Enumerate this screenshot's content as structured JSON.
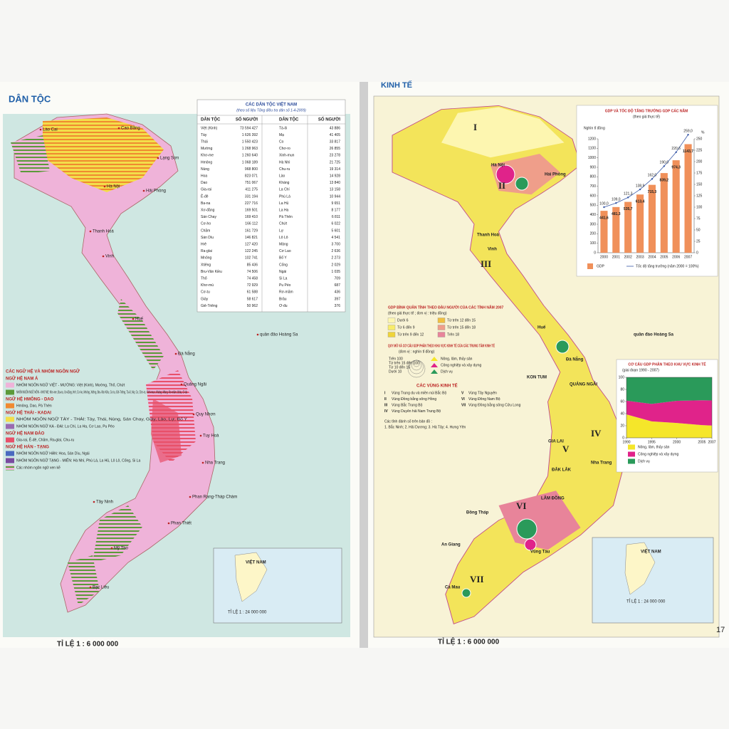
{
  "left_page": {
    "header": "DÂN TỘC",
    "table": {
      "title": "CÁC DÂN TỘC VIỆT NAM",
      "subtitle": "(theo số liệu Tổng điều tra dân số 1-4-2009)",
      "columns": [
        "DÂN TỘC",
        "SỐ NGƯỜI",
        "DÂN TỘC",
        "SỐ NGƯỜI"
      ],
      "rows": [
        [
          "Việt (Kinh)",
          "73 594 427",
          "Tà-ôi",
          "43 886"
        ],
        [
          "Tày",
          "1 626 392",
          "Mạ",
          "41 405"
        ],
        [
          "Thái",
          "1 550 423",
          "Co",
          "33 817"
        ],
        [
          "Mường",
          "1 268 963",
          "Chơ-ro",
          "26 855"
        ],
        [
          "Khơ-me",
          "1 260 640",
          "Xinh-mun",
          "23 278"
        ],
        [
          "Hmông",
          "1 068 189",
          "Hà Nhì",
          "21 725"
        ],
        [
          "Nùng",
          "968 800",
          "Chu-ru",
          "19 314"
        ],
        [
          "Hoa",
          "823 071",
          "Lào",
          "14 928"
        ],
        [
          "Dao",
          "751 067",
          "Kháng",
          "13 840"
        ],
        [
          "Gia-rai",
          "411 275",
          "La Chí",
          "13 158"
        ],
        [
          "Ê-đê",
          "331 194",
          "Phù Lá",
          "10 944"
        ],
        [
          "Ba-na",
          "227 716",
          "La Hủ",
          "9 651"
        ],
        [
          "Xơ-đăng",
          "169 501",
          "La Ha",
          "8 177"
        ],
        [
          "Sán Chay",
          "169 410",
          "Pà Thẻn",
          "6 811"
        ],
        [
          "Cơ-ho",
          "166 112",
          "Chứt",
          "6 022"
        ],
        [
          "Chăm",
          "161 729",
          "Lự",
          "5 601"
        ],
        [
          "Sán Dìu",
          "146 821",
          "Lô Lô",
          "4 541"
        ],
        [
          "Hrê",
          "127 420",
          "Mảng",
          "3 700"
        ],
        [
          "Ra-glai",
          "122 245",
          "Cơ Lao",
          "2 636"
        ],
        [
          "Mnông",
          "102 741",
          "Bố Y",
          "2 273"
        ],
        [
          "Xtiêng",
          "85 436",
          "Cống",
          "2 029"
        ],
        [
          "Bru-Vân Kiều",
          "74 506",
          "Ngái",
          "1 035"
        ],
        [
          "Thổ",
          "74 458",
          "Si La",
          "709"
        ],
        [
          "Khơ-mú",
          "72 929",
          "Pu Péo",
          "687"
        ],
        [
          "Cơ-tu",
          "61 588",
          "Rơ-măm",
          "436"
        ],
        [
          "Giáy",
          "58 617",
          "Brâu",
          "397"
        ],
        [
          "Giẻ-Triêng",
          "50 962",
          "Ơ-đu",
          "376"
        ]
      ]
    },
    "legend": {
      "title": "CÁC NGỮ HỆ VÀ NHÓM NGÔN NGỮ",
      "groups": [
        {
          "title": "NGỮ HỆ NAM Á",
          "items": [
            {
              "label": "NHÓM NGÔN NGỮ VIỆT - MƯỜNG: Việt (Kinh), Mường, Thổ, Chứt",
              "color": "#efb3d9"
            },
            {
              "label": "NHÓM NGÔN NGỮ MÔN - KHƠ ME: Khơ-me, Ba-na, Xơ-đăng, Hrê, Cơ-ho, Mnông, Xtiêng, Bru-Vân Kiều, Cơ-tu, Giẻ-Triêng, Tà-ôi, Mạ, Co, Chơ-ro, Xinh-mun, Kháng, Mảng, Rơ-măm, Brâu, Ơ-đu",
              "color": "#5c9a3a"
            }
          ]
        },
        {
          "title": "NGỮ HỆ HMÔNG - DAO",
          "items": [
            {
              "label": "Hmông, Dao, Pà Thẻn",
              "color": "#f08a30"
            }
          ]
        },
        {
          "title": "NGỮ HỆ THÁI - KADAI",
          "items": [
            {
              "label": "NHÓM NGÔN NGỮ TÀY - THÁI: Tày, Thái, Nùng, Sán Chay, Giáy, Lào, Lự, Bố Y",
              "color": "#f3de4a"
            },
            {
              "label": "NHÓM NGÔN NGỮ KA - ĐAI: La Chí, La Ha, Cơ Lao, Pu Péo",
              "color": "#9a6ab0"
            }
          ]
        },
        {
          "title": "NGỮ HỆ NAM ĐẢO",
          "items": [
            {
              "label": "Gia-rai, Ê-đê, Chăm, Ra-glai, Chu-ru",
              "color": "#e8506a"
            }
          ]
        },
        {
          "title": "NGỮ HỆ HÁN - TẠNG",
          "items": [
            {
              "label": "NHÓM NGÔN NGỮ HÁN: Hoa, Sán Dìu, Ngái",
              "color": "#4a6ac0"
            },
            {
              "label": "NHÓM NGÔN NGỮ TẠNG - MIẾN: Hà Nhì, Phù Lá, La Hủ, Lô Lô, Cống, Si La",
              "color": "#7a4aa0"
            }
          ]
        }
      ],
      "mixed": "Các nhóm ngôn ngữ xen kẽ"
    },
    "places": [
      "Lào Cai",
      "Cao Bằng",
      "Lạng Sơn",
      "Hà Nội",
      "Hải Phòng",
      "Thanh Hoá",
      "Vinh",
      "Huế",
      "Đà Nẵng",
      "Quảng Ngãi",
      "Quy Nhơn",
      "Tuy Hoà",
      "Nha Trang",
      "Phan Rang-Tháp Chàm",
      "Phan Thiết",
      "Tây Ninh",
      "Mỹ Tho",
      "Bạc Liêu",
      "quần đảo Hoàng Sa"
    ],
    "inset_label": "VIỆT NAM",
    "inset_scale": "TỈ LỆ 1 : 24 000 000",
    "scale": "TỈ LỆ 1 : 6 000 000"
  },
  "right_page": {
    "header": "KINH TẾ",
    "gdp_legend": {
      "title": "GDP BÌNH QUÂN TÍNH THEO ĐẦU NGƯỜI CỦA CÁC TỈNH NĂM 2007",
      "subtitle": "(theo giá thực tế ; đơn vị : triệu đồng)",
      "items": [
        {
          "label": "Dưới 6",
          "color": "#fdf6b0"
        },
        {
          "label": "Từ 6 đến 9",
          "color": "#f8ec6a"
        },
        {
          "label": "Từ trên 9 đến 12",
          "color": "#efd43a"
        },
        {
          "label": "Từ trên 12 đến 15",
          "color": "#f0c040"
        },
        {
          "label": "Từ trên 15 đến 18",
          "color": "#ef9e8a"
        },
        {
          "label": "Trên 18",
          "color": "#e8849a"
        }
      ]
    },
    "centers_legend": {
      "title": "QUY MÔ VÀ CƠ CẤU GDP PHÂN THEO KHU VỰC KINH TẾ CỦA CÁC TRUNG TÂM KINH TẾ",
      "subtitle": "(đơn vị : nghìn tỉ đồng)",
      "sizes": [
        "Trên 100",
        "Từ trên 15 đến 100",
        "Từ 10 đến 15",
        "Dưới 10"
      ],
      "sectors": [
        {
          "label": "Nông, lâm, thủy sản",
          "color": "#f5e62a"
        },
        {
          "label": "Công nghiệp và xây dựng",
          "color": "#e0238a"
        },
        {
          "label": "Dịch vụ",
          "color": "#2a9a5a"
        }
      ]
    },
    "regions": {
      "title": "CÁC VÙNG KINH TẾ",
      "items": [
        {
          "numeral": "I",
          "label": "Vùng Trung du và miền núi Bắc Bộ"
        },
        {
          "numeral": "II",
          "label": "Vùng Đồng bằng sông Hồng"
        },
        {
          "numeral": "III",
          "label": "Vùng Bắc Trung Bộ"
        },
        {
          "numeral": "IV",
          "label": "Vùng Duyên hải Nam Trung Bộ"
        },
        {
          "numeral": "V",
          "label": "Vùng Tây Nguyên"
        },
        {
          "numeral": "VI",
          "label": "Vùng Đông Nam Bộ"
        },
        {
          "numeral": "VII",
          "label": "Vùng Đồng bằng sông Cửu Long"
        }
      ],
      "note": "Các tỉnh đánh số trên bản đồ :",
      "provinces": "1. Bắc Ninh; 2. Hải Dương; 3. Hà Tây; 4. Hưng Yên"
    },
    "places": [
      "Hà Nội",
      "Hải Phòng",
      "Thanh Hoá",
      "Vinh",
      "Huế",
      "Đà Nẵng",
      "QUẢNG NGÃI",
      "KON TUM",
      "GIA LAI",
      "ĐẮK LẮK",
      "LÂM ĐỒNG",
      "Nha Trang",
      "Vũng Tàu",
      "Đồng Tháp",
      "An Giang",
      "Cà Mau",
      "quần đảo Hoàng Sa"
    ],
    "inset_label": "VIỆT NAM",
    "inset_scale": "TỈ LỆ 1 : 24 000 000",
    "scale": "TỈ LỆ 1 : 6 000 000",
    "page_number": "17"
  },
  "chart_data": [
    {
      "type": "bar",
      "title": "GDP VÀ TỐC ĐỘ TĂNG TRƯỞNG GDP CÁC NĂM",
      "subtitle": "(theo giá thực tế)",
      "y_label": "Nghìn tỉ đồng",
      "y2_label": "%",
      "categories": [
        "2000",
        "2001",
        "2002",
        "2003",
        "2004",
        "2005",
        "2006",
        "2007"
      ],
      "series": [
        {
          "name": "GDP",
          "color": "#f0905a",
          "values": [
            441.6,
            481.3,
            535.7,
            613.4,
            715.3,
            839.2,
            974.3,
            1143.7
          ],
          "value_labels": [
            "441,6",
            "481,3",
            "535,7",
            "613,4",
            "715,3",
            "839,2",
            "974,3",
            "1143,7"
          ]
        },
        {
          "name": "Tốc độ tăng trưởng (năm 2000 = 100%)",
          "color": "#3a5aa8",
          "axis": "y2",
          "values": [
            100.0,
            109.0,
            121.3,
            138.9,
            162.0,
            190.0,
            220.6,
            259.0
          ],
          "value_labels": [
            "100,0",
            "109,0",
            "121,3",
            "138,9",
            "162,0",
            "190,0",
            "220,6",
            "259,0"
          ]
        }
      ],
      "ylim": [
        0,
        1200
      ],
      "yticks": [
        0,
        100,
        200,
        300,
        400,
        500,
        600,
        700,
        800,
        900,
        1000,
        1100,
        1200
      ],
      "y2lim": [
        0,
        250
      ],
      "y2ticks": [
        0,
        25,
        50,
        75,
        100,
        125,
        150,
        175,
        200,
        225,
        250
      ]
    },
    {
      "type": "area",
      "title": "CƠ CẤU GDP PHÂN THEO KHU VỰC KINH TẾ",
      "subtitle": "(giai đoạn 1990 - 2007)",
      "x": [
        1990,
        1995,
        2000,
        2005,
        2007
      ],
      "xlim": [
        1990,
        2007
      ],
      "xticks": [
        1990,
        1995,
        2000,
        2005,
        2007
      ],
      "series": [
        {
          "name": "Nông, lâm, thủy sản",
          "color": "#f5e62a",
          "values": [
            38.7,
            27.2,
            24.5,
            21.0,
            20.3
          ]
        },
        {
          "name": "Công nghiệp và xây dựng",
          "color": "#e0238a",
          "values": [
            22.7,
            28.8,
            36.7,
            41.0,
            41.5
          ]
        },
        {
          "name": "Dịch vụ",
          "color": "#2a9a5a",
          "values": [
            38.6,
            44.0,
            38.8,
            38.0,
            38.2
          ]
        }
      ],
      "ylim": [
        0,
        100
      ],
      "yticks": [
        0,
        20,
        40,
        60,
        80,
        100
      ]
    }
  ]
}
